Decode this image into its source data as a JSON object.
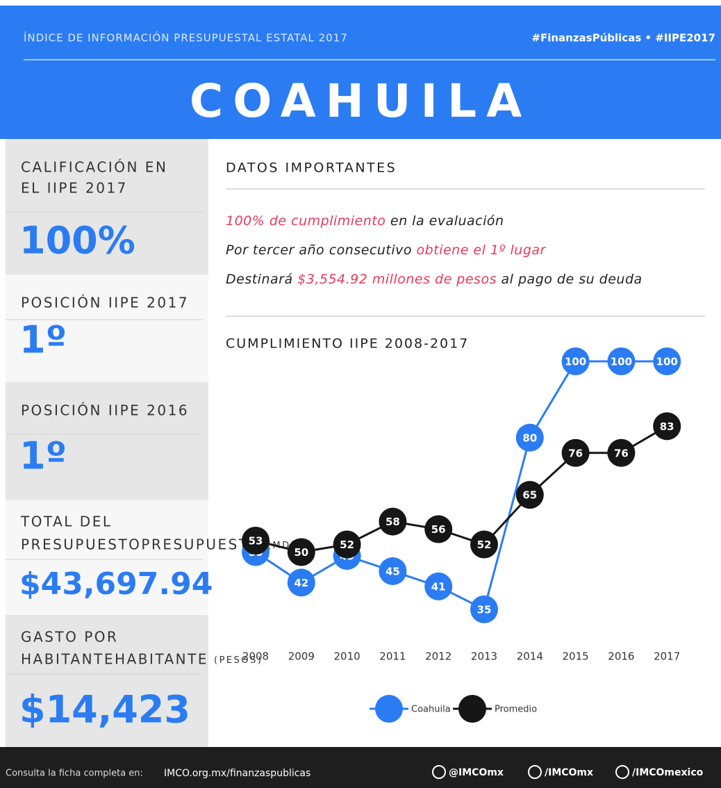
{
  "header": {
    "kicker": "ÍNDICE DE INFORMACIÓN PRESUPUESTAL ESTATAL 2017",
    "hashtags": "#FinanzasPúblicas • #IIPE2017",
    "title": "COAHUILA"
  },
  "sidebar": [
    {
      "label": [
        "CALIFICACIÓN EN",
        "EL IIPE 2017"
      ],
      "unit": null,
      "value": "100%"
    },
    {
      "label": [
        "POSICIÓN IIPE 2017"
      ],
      "unit": null,
      "value": "1º"
    },
    {
      "label": [
        "POSICIÓN IIPE 2016"
      ],
      "unit": null,
      "value": "1º"
    },
    {
      "label": [
        "TOTAL DEL",
        "PRESUPUESTO"
      ],
      "unit": "(MDP)",
      "value": "$43,697.94"
    },
    {
      "label": [
        "GASTO POR",
        "HABITANTE"
      ],
      "unit": "(PESOS)",
      "value": "$14,423"
    }
  ],
  "datos": {
    "title": "DATOS IMPORTANTES",
    "items": [
      [
        {
          "text": "100% de cumplimiento",
          "highlight": true
        },
        {
          "text": " en la evaluación",
          "highlight": false
        }
      ],
      [
        {
          "text": "Por tercer año consecutivo ",
          "highlight": false
        },
        {
          "text": "obtiene el 1º lugar",
          "highlight": true
        }
      ],
      [
        {
          "text": "Destinará ",
          "highlight": false
        },
        {
          "text": "$3,554.92 millones de pesos",
          "highlight": true
        },
        {
          "text": " al pago de su deuda",
          "highlight": false
        }
      ]
    ]
  },
  "chart_data": {
    "type": "line",
    "title": "CUMPLIMIENTO IIPE 2008-2017",
    "categories": [
      "2008",
      "2009",
      "2010",
      "2011",
      "2012",
      "2013",
      "2014",
      "2015",
      "2016",
      "2017"
    ],
    "series": [
      {
        "name": "Coahuila",
        "color": "#2b7cf3",
        "values": [
          50,
          42,
          49,
          45,
          41,
          35,
          80,
          100,
          100,
          100
        ]
      },
      {
        "name": "Promedio",
        "color": "#161616",
        "values": [
          53,
          50,
          52,
          58,
          56,
          52,
          65,
          76,
          76,
          83
        ]
      }
    ]
  },
  "footer": {
    "lead": "Consulta la ficha completa en:",
    "url": "IMCO.org.mx/finanzaspublicas",
    "social": [
      "@IMCOmx",
      "/IMCOmx",
      "/IMCOmexico"
    ]
  }
}
